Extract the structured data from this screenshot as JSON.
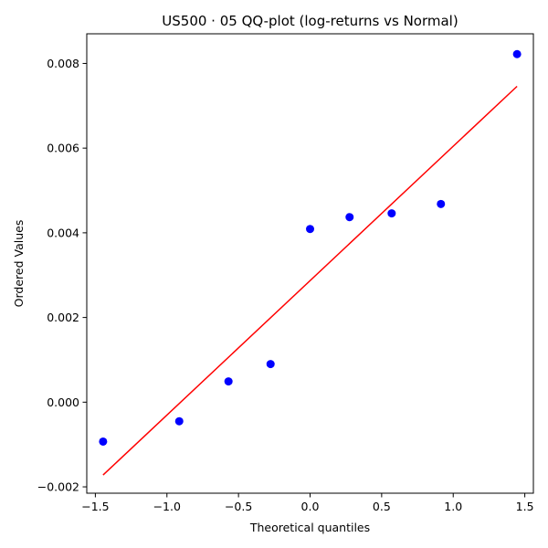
{
  "chart_data": {
    "type": "scatter",
    "title": "US500 · 05 QQ-plot (log-returns vs Normal)",
    "xlabel": "Theoretical quantiles",
    "ylabel": "Ordered Values",
    "xlim": [
      -1.56,
      1.56
    ],
    "ylim": [
      -0.00215,
      0.0087
    ],
    "x_ticks": [
      -1.5,
      -1.0,
      -0.5,
      0.0,
      0.5,
      1.0,
      1.5
    ],
    "x_tick_labels": [
      "−1.5",
      "−1.0",
      "−0.5",
      "0.0",
      "0.5",
      "1.0",
      "1.5"
    ],
    "y_ticks": [
      -0.002,
      0.0,
      0.002,
      0.004,
      0.006,
      0.008
    ],
    "y_tick_labels": [
      "−0.002",
      "0.000",
      "0.002",
      "0.004",
      "0.006",
      "0.008"
    ],
    "grid": false,
    "points": {
      "color": "#0000ff",
      "x": [
        -1.446,
        -0.914,
        -0.57,
        -0.276,
        0.0,
        0.276,
        0.57,
        0.914,
        1.446
      ],
      "y": [
        -0.00093,
        -0.00045,
        0.00049,
        0.0009,
        0.00409,
        0.00437,
        0.00446,
        0.00468,
        0.00822
      ]
    },
    "fit_line": {
      "color": "#ff0000",
      "x": [
        -1.446,
        1.446
      ],
      "y": [
        -0.00172,
        0.00746
      ]
    }
  }
}
